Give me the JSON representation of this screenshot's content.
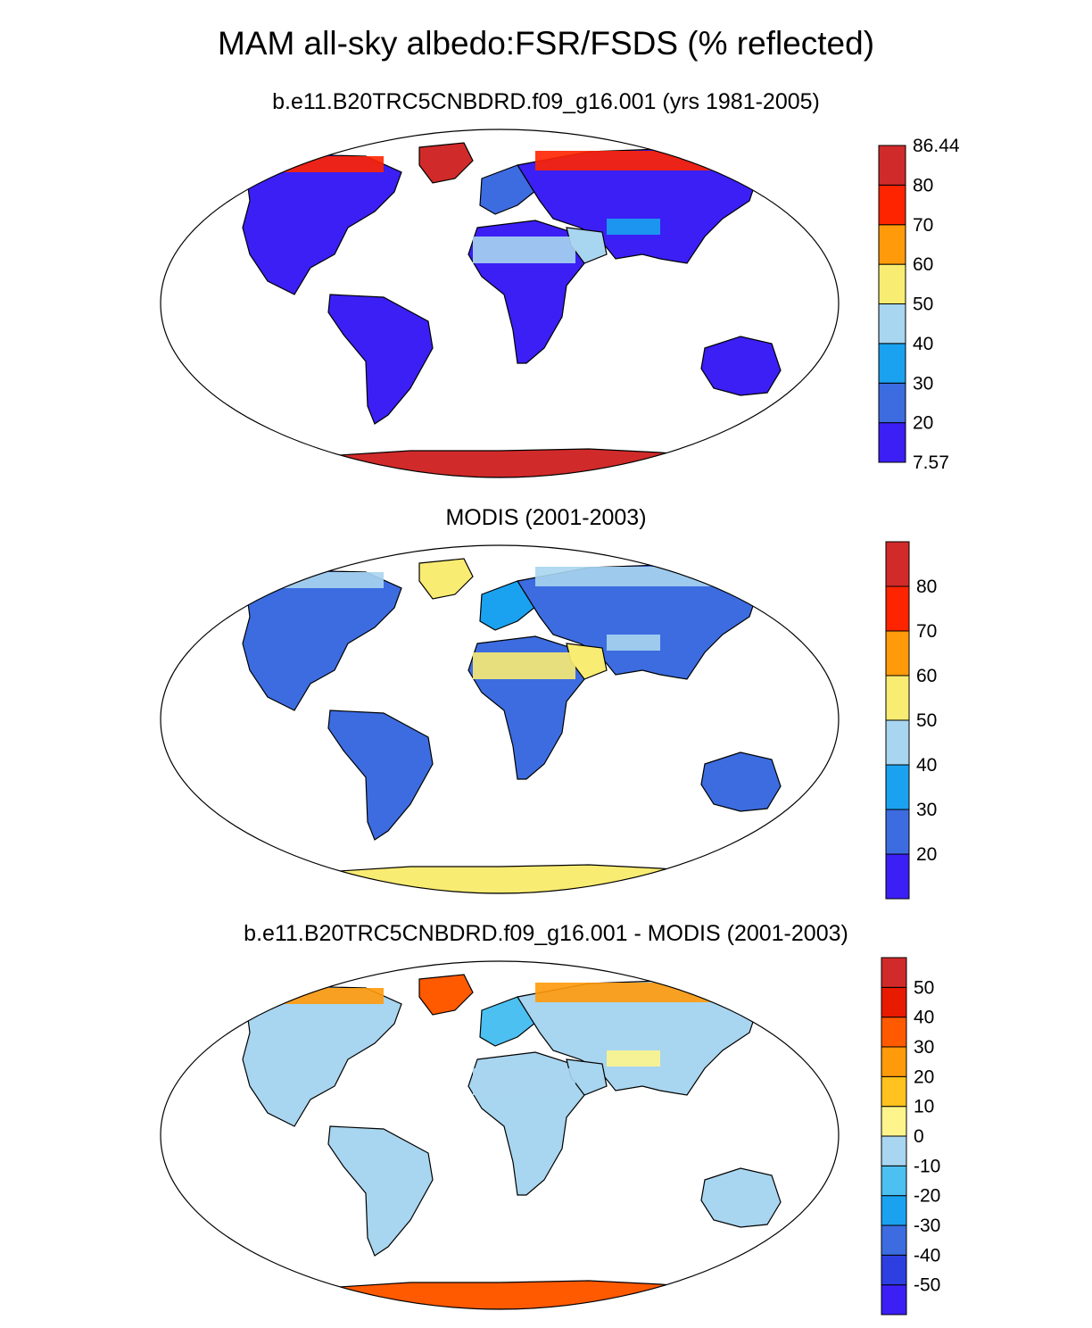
{
  "title": "MAM all-sky albedo:FSR/FSDS (% reflected)",
  "panels": [
    {
      "title": "b.e11.B20TRC5CNBDRD.f09_g16.001 (yrs 1981-2005)",
      "colorbar": {
        "colors": [
          "#3b1ff5",
          "#3c6ce0",
          "#1aa2f0",
          "#a8d5ef",
          "#f9ec72",
          "#ff9a0a",
          "#ff2400",
          "#d12a2a"
        ],
        "labels": [
          "7.57",
          "20",
          "30",
          "40",
          "50",
          "60",
          "70",
          "80",
          "86.44"
        ]
      }
    },
    {
      "title": "MODIS (2001-2003)",
      "colorbar": {
        "colors": [
          "#3b1ff5",
          "#3c6ce0",
          "#1aa2f0",
          "#a8d5ef",
          "#f9ec72",
          "#ff9a0a",
          "#ff2400",
          "#d12a2a"
        ],
        "labels": [
          "20",
          "30",
          "40",
          "50",
          "60",
          "70",
          "80"
        ]
      }
    },
    {
      "title": "b.e11.B20TRC5CNBDRD.f09_g16.001 - MODIS (2001-2003)",
      "colorbar": {
        "colors": [
          "#3b1ff5",
          "#2d3fe0",
          "#3c6ce0",
          "#1aa2f0",
          "#4cc0f0",
          "#a8d5ef",
          "#fdf58c",
          "#ffc21e",
          "#ff9a0a",
          "#ff5a00",
          "#e81a00",
          "#d12a2a"
        ],
        "labels": [
          "-50",
          "-40",
          "-30",
          "-20",
          "-10",
          "0",
          "10",
          "20",
          "30",
          "40",
          "50"
        ]
      }
    }
  ],
  "map_colors": {
    "panel1": {
      "ocean": "#ffffff",
      "land": "#3b1ff5",
      "land_alt": "#3c6ce0",
      "desert": "#a8d5ef",
      "desert2": "#1aa2f0",
      "ice": "#d12a2a",
      "ice2": "#ff2400"
    },
    "panel2": {
      "ocean": "#ffffff",
      "land": "#3c6ce0",
      "land_alt": "#1aa2f0",
      "desert": "#f9ec72",
      "desert2": "#a8d5ef",
      "ice": "#f9ec72",
      "ice2": "#a8d5ef"
    },
    "panel3": {
      "ocean": "#ffffff",
      "land": "#a8d5ef",
      "land_alt": "#4cc0f0",
      "desert": "#a8d5ef",
      "desert2": "#fdf58c",
      "ice": "#ff5a00",
      "ice2": "#ff9a0a"
    }
  }
}
